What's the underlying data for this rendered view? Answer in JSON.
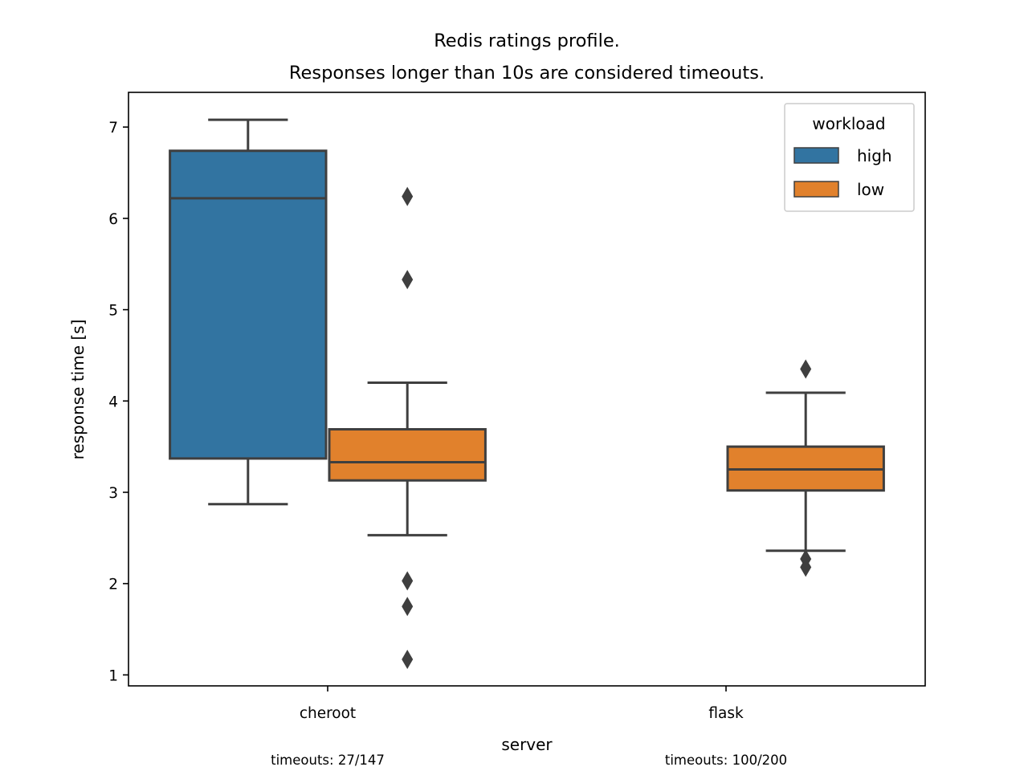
{
  "chart_data": {
    "type": "box",
    "title_lines": [
      "Redis ratings profile.",
      "Responses longer than 10s are considered timeouts."
    ],
    "xlabel": "server",
    "ylabel": "response time [s]",
    "ylim": [
      0.88,
      7.38
    ],
    "yticks": [
      1,
      2,
      3,
      4,
      5,
      6,
      7
    ],
    "categories": [
      "cheroot",
      "flask"
    ],
    "legend": {
      "title": "workload",
      "position": "upper-right",
      "entries": [
        {
          "name": "high",
          "color": "#3274a1"
        },
        {
          "name": "low",
          "color": "#e1812c"
        }
      ]
    },
    "grid": false,
    "boxes": [
      {
        "category": "cheroot",
        "series": "high",
        "whisker_low": 2.87,
        "q1": 3.37,
        "median": 6.22,
        "q3": 6.74,
        "whisker_high": 7.08,
        "outliers": []
      },
      {
        "category": "cheroot",
        "series": "low",
        "whisker_low": 2.53,
        "q1": 3.13,
        "median": 3.33,
        "q3": 3.69,
        "whisker_high": 4.2,
        "outliers": [
          6.24,
          5.33,
          2.03,
          1.75,
          1.17
        ]
      },
      {
        "category": "flask",
        "series": "low",
        "whisker_low": 2.36,
        "q1": 3.02,
        "median": 3.25,
        "q3": 3.5,
        "whisker_high": 4.09,
        "outliers": [
          4.35,
          2.27,
          2.18
        ]
      }
    ],
    "annotations": [
      {
        "category": "cheroot",
        "text": "timeouts: 27/147"
      },
      {
        "category": "flask",
        "text": "timeouts: 100/200"
      }
    ]
  }
}
